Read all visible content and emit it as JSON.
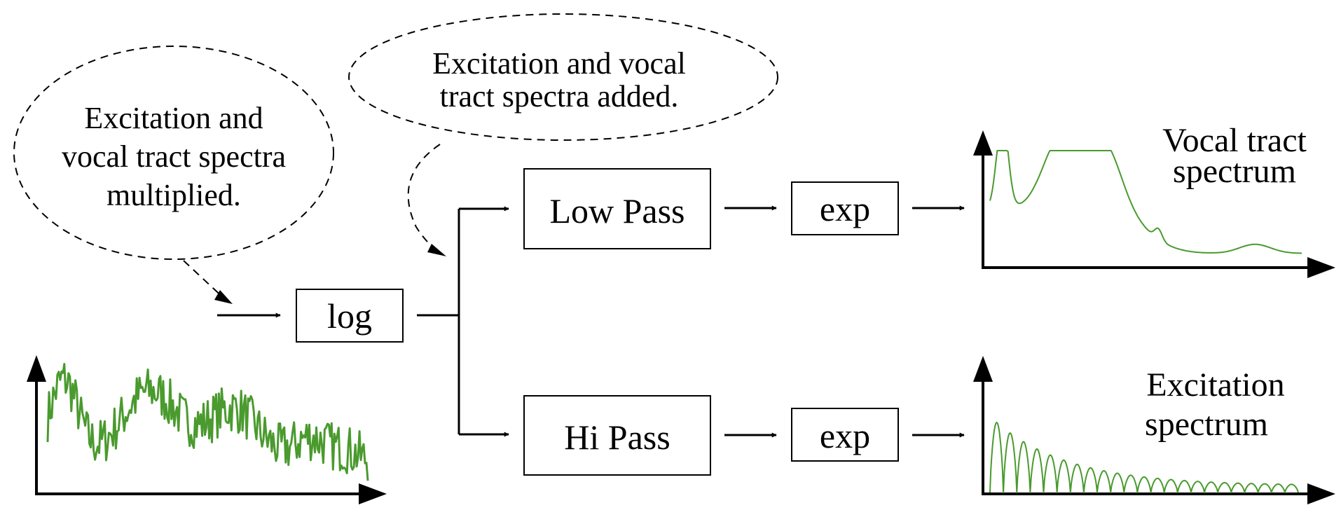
{
  "bubbles": {
    "multiplied": [
      "Excitation and",
      "vocal tract spectra",
      "multiplied."
    ],
    "added": [
      "Excitation and vocal",
      "tract spectra added."
    ]
  },
  "blocks": {
    "log": "log",
    "low_pass": "Low Pass",
    "hi_pass": "Hi Pass",
    "exp_top": "exp",
    "exp_bottom": "exp"
  },
  "plots": {
    "vocal_tract": {
      "label": [
        "Vocal tract",
        "spectrum"
      ],
      "color": "#4a9a2e"
    },
    "excitation": {
      "label": [
        "Excitation",
        "spectrum"
      ],
      "color": "#4a9a2e"
    },
    "input": {
      "color": "#4a9a2e"
    }
  }
}
